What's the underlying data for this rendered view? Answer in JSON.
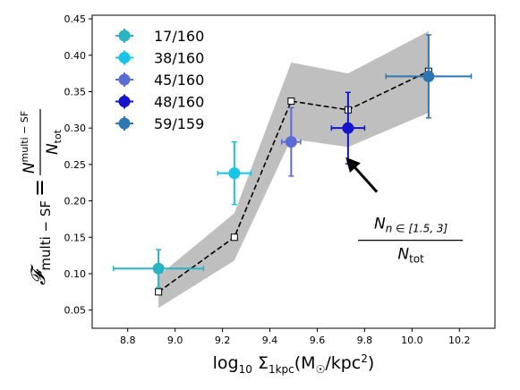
{
  "chart_data": {
    "type": "scatter",
    "x_ticks": [
      "8.8",
      "9.0",
      "9.2",
      "9.4",
      "9.6",
      "9.8",
      "10.0",
      "10.2"
    ],
    "y_ticks": [
      "0.05",
      "0.10",
      "0.15",
      "0.20",
      "0.25",
      "0.30",
      "0.35",
      "0.40",
      "0.45"
    ],
    "xlim": [
      8.65,
      10.35
    ],
    "ylim": [
      0.025,
      0.455
    ],
    "grid": false,
    "legend_position": "top-left",
    "xlabel": {
      "prefix": "log",
      "sub": "10",
      "sigma": " Σ",
      "sigma_sub": "1kpc",
      "unit_open": "(M",
      "sun_sub": "☉",
      "unit_mid": "/kpc",
      "unit_sup": "2",
      "unit_close": ")"
    },
    "ylabel": {
      "script_f": "𝓕",
      "f_sub": "multi − SF",
      "equals": "=",
      "num": "N",
      "num_sub": "multi − SF",
      "den": "N",
      "den_sub": "tot"
    },
    "annotation": {
      "num": "N",
      "num_sub": "n ∈ [1.5, 3]",
      "den": "N",
      "den_sub": "tot",
      "arrow_to": [
        9.72,
        0.26
      ],
      "text_at": [
        9.95,
        0.195
      ]
    },
    "binned_points": [
      {
        "label": "17/160",
        "x": 8.93,
        "y": 0.107,
        "xerr": [
          0.19,
          0.19
        ],
        "yerr": [
          0.026,
          0.026
        ],
        "color": "#2ab3c3"
      },
      {
        "label": "38/160",
        "x": 9.25,
        "y": 0.238,
        "xerr": [
          0.07,
          0.07
        ],
        "yerr": [
          0.043,
          0.043
        ],
        "color": "#17c4e8"
      },
      {
        "label": "45/160",
        "x": 9.49,
        "y": 0.281,
        "xerr": [
          0.04,
          0.04
        ],
        "yerr": [
          0.047,
          0.047
        ],
        "color": "#5b6bd6"
      },
      {
        "label": "48/160",
        "x": 9.73,
        "y": 0.3,
        "xerr": [
          0.07,
          0.07
        ],
        "yerr": [
          0.049,
          0.049
        ],
        "color": "#1414cc"
      },
      {
        "label": "59/159",
        "x": 10.07,
        "y": 0.371,
        "xerr": [
          0.18,
          0.18
        ],
        "yerr": [
          0.057,
          0.057
        ],
        "color": "#2d76b2"
      }
    ],
    "reference_line": {
      "x": [
        8.93,
        9.25,
        9.49,
        9.73,
        10.07
      ],
      "y": [
        0.075,
        0.15,
        0.337,
        0.325,
        0.378
      ],
      "band_upper": [
        0.097,
        0.183,
        0.39,
        0.375,
        0.433
      ],
      "band_lower": [
        0.053,
        0.118,
        0.285,
        0.274,
        0.321
      ],
      "color": "#000000",
      "band_color": "#bfbfbf"
    }
  }
}
